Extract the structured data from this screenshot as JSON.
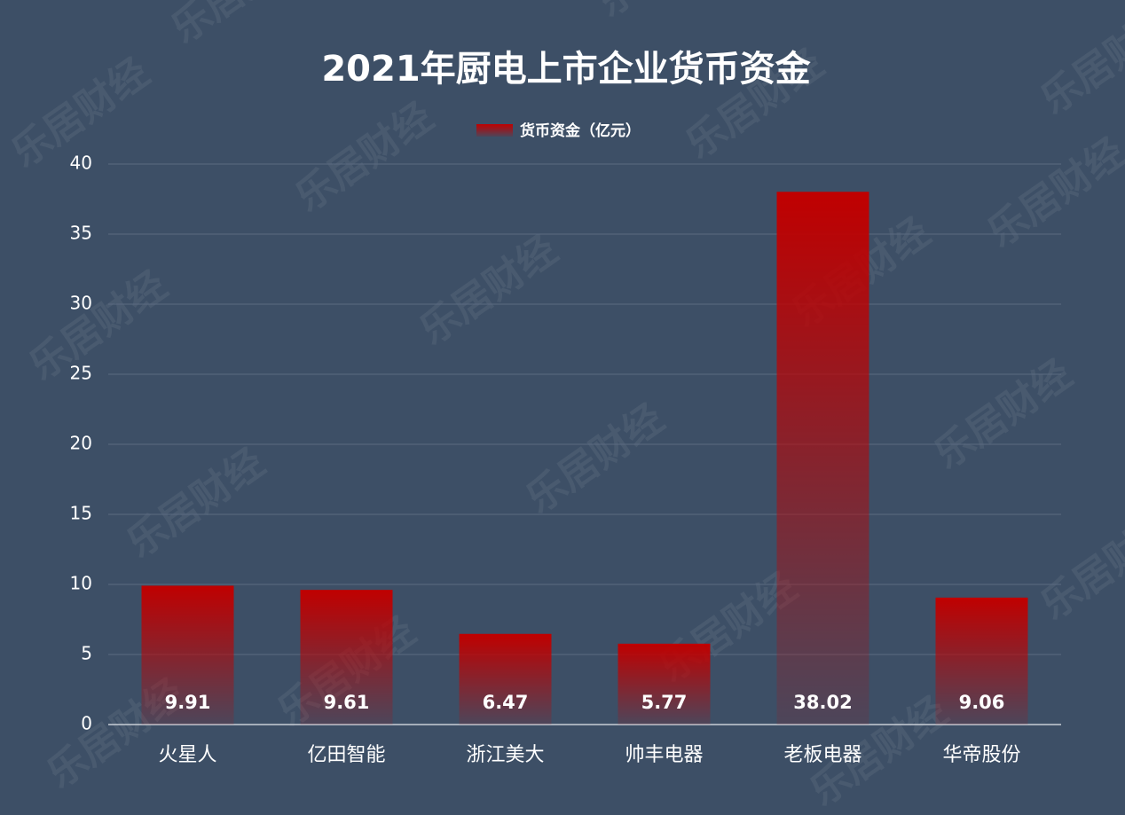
{
  "chart_data": {
    "type": "bar",
    "title": "2021年厨电上市企业货币资金",
    "watermark": "乐居财经",
    "categories": [
      "火星人",
      "亿田智能",
      "浙江美大",
      "帅丰电器",
      "老板电器",
      "华帝股份"
    ],
    "series": [
      {
        "name": "货币资金（亿元）",
        "color": "#c00000",
        "values": [
          9.91,
          9.61,
          6.47,
          5.77,
          38.02,
          9.06
        ]
      }
    ],
    "ylim": [
      0,
      40
    ],
    "yticks": [
      0,
      5,
      10,
      15,
      20,
      25,
      30,
      35,
      40
    ],
    "grid": true,
    "legend": "top"
  }
}
